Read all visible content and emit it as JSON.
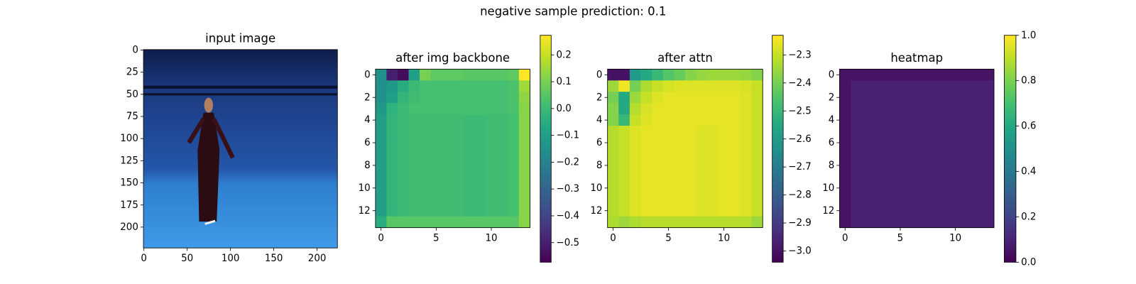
{
  "title": "negative sample     prediction: 0.1",
  "chart_data": [
    {
      "type": "image",
      "title": "input image",
      "xlim": [
        -0.5,
        223.5
      ],
      "ylim": [
        223.5,
        -0.5
      ],
      "xticks": [
        0,
        50,
        100,
        150,
        200
      ],
      "yticks": [
        0,
        25,
        50,
        75,
        100,
        125,
        150,
        175,
        200
      ]
    },
    {
      "type": "heatmap",
      "title": "after img backbone",
      "colormap": "viridis",
      "xlim": [
        -0.5,
        13.5
      ],
      "ylim": [
        13.5,
        -0.5
      ],
      "xticks": [
        0,
        5,
        10
      ],
      "yticks": [
        0,
        2,
        4,
        6,
        8,
        10,
        12
      ],
      "colorbar": {
        "ylim": [
          -0.573,
          0.273
        ],
        "yticks": [
          0.2,
          0.1,
          {
            "value": 0,
            "label": "0.0"
          },
          {
            "value": -0.1,
            "label": "−0.1"
          },
          {
            "value": -0.2,
            "label": "−0.2"
          },
          {
            "value": -0.3,
            "label": "−0.3"
          },
          {
            "value": -0.4,
            "label": "−0.4"
          },
          {
            "value": -0.5,
            "label": "−0.5"
          }
        ]
      },
      "z": [
        [
          -0.15,
          -0.5,
          -0.55,
          -0.1,
          0.1,
          0.06,
          0.06,
          0.06,
          0.05,
          0.05,
          0.05,
          0.05,
          0.06,
          0.27
        ],
        [
          -0.15,
          -0.12,
          -0.05,
          0,
          0.02,
          0.02,
          0.02,
          0.02,
          0.02,
          0.02,
          0.02,
          0.02,
          0.03,
          0.15
        ],
        [
          -0.15,
          -0.1,
          -0.02,
          0.01,
          0.02,
          0.02,
          0.02,
          0.02,
          0.02,
          0.02,
          0.02,
          0.02,
          0.03,
          0.13
        ],
        [
          -0.12,
          -0.03,
          0,
          0.02,
          0.02,
          0.02,
          0.02,
          0.02,
          0.02,
          0.02,
          0.02,
          0.02,
          0.03,
          0.12
        ],
        [
          -0.1,
          -0.02,
          0,
          0.01,
          0.01,
          0.01,
          0.01,
          0.01,
          0,
          0,
          0.01,
          0.01,
          0.02,
          0.12
        ],
        [
          -0.1,
          -0.02,
          0,
          0.01,
          0.01,
          0.01,
          0.01,
          0.01,
          0,
          0,
          0.01,
          0.01,
          0.02,
          0.12
        ],
        [
          -0.1,
          -0.02,
          0,
          0.01,
          0.01,
          0.01,
          0.01,
          0.01,
          0,
          0,
          0.01,
          0.01,
          0.02,
          0.12
        ],
        [
          -0.1,
          -0.02,
          0,
          0.01,
          0.01,
          0.01,
          0.01,
          0.01,
          0,
          0,
          0.01,
          0.01,
          0.02,
          0.12
        ],
        [
          -0.1,
          -0.02,
          0,
          0.01,
          0.01,
          0.01,
          0.01,
          0.01,
          0,
          0,
          0.01,
          0.01,
          0.02,
          0.12
        ],
        [
          -0.1,
          -0.02,
          0,
          0.01,
          0.01,
          0.01,
          0.01,
          0.01,
          0,
          0,
          0.01,
          0.01,
          0.02,
          0.12
        ],
        [
          -0.1,
          -0.02,
          0,
          0.01,
          0.01,
          0.01,
          0.01,
          0.01,
          0,
          0,
          0.01,
          0.01,
          0.02,
          0.12
        ],
        [
          -0.1,
          -0.02,
          0,
          0.01,
          0.01,
          0.01,
          0.01,
          0.01,
          0,
          0,
          0.01,
          0.01,
          0.02,
          0.12
        ],
        [
          -0.1,
          -0.02,
          0,
          0.01,
          0.01,
          0.01,
          0.01,
          0.01,
          0,
          0,
          0.01,
          0.01,
          0.02,
          0.12
        ],
        [
          -0.05,
          0.05,
          0.05,
          0.05,
          0.05,
          0.05,
          0.05,
          0.05,
          0.05,
          0.05,
          0.05,
          0.05,
          0.05,
          0.12
        ]
      ]
    },
    {
      "type": "heatmap",
      "title": "after attn",
      "colormap": "viridis",
      "xlim": [
        -0.5,
        13.5
      ],
      "ylim": [
        13.5,
        -0.5
      ],
      "xticks": [
        0,
        5,
        10
      ],
      "yticks": [
        0,
        2,
        4,
        6,
        8,
        10,
        12
      ],
      "colorbar": {
        "ylim": [
          -3.04,
          -2.23
        ],
        "yticks": [
          {
            "value": -2.3,
            "label": "−2.3"
          },
          {
            "value": -2.4,
            "label": "−2.4"
          },
          {
            "value": -2.5,
            "label": "−2.5"
          },
          {
            "value": -2.6,
            "label": "−2.6"
          },
          {
            "value": -2.7,
            "label": "−2.7"
          },
          {
            "value": -2.8,
            "label": "−2.8"
          },
          {
            "value": -2.9,
            "label": "−2.9"
          },
          {
            "value": -3,
            "label": "−3.0"
          }
        ]
      },
      "z": [
        [
          -3.0,
          -3.0,
          -2.6,
          -2.55,
          -2.5,
          -2.45,
          -2.42,
          -2.38,
          -2.36,
          -2.35,
          -2.35,
          -2.35,
          -2.36,
          -2.38
        ],
        [
          -2.35,
          -2.25,
          -2.4,
          -2.33,
          -2.3,
          -2.28,
          -2.27,
          -2.27,
          -2.27,
          -2.27,
          -2.27,
          -2.27,
          -2.28,
          -2.3
        ],
        [
          -2.4,
          -2.55,
          -2.35,
          -2.3,
          -2.27,
          -2.26,
          -2.26,
          -2.26,
          -2.26,
          -2.26,
          -2.26,
          -2.26,
          -2.27,
          -2.3
        ],
        [
          -2.38,
          -2.55,
          -2.32,
          -2.28,
          -2.26,
          -2.26,
          -2.26,
          -2.26,
          -2.26,
          -2.26,
          -2.26,
          -2.26,
          -2.27,
          -2.3
        ],
        [
          -2.38,
          -2.5,
          -2.3,
          -2.27,
          -2.26,
          -2.26,
          -2.26,
          -2.26,
          -2.26,
          -2.26,
          -2.26,
          -2.26,
          -2.27,
          -2.3
        ],
        [
          -2.32,
          -2.3,
          -2.27,
          -2.26,
          -2.26,
          -2.26,
          -2.26,
          -2.26,
          -2.27,
          -2.27,
          -2.26,
          -2.26,
          -2.27,
          -2.3
        ],
        [
          -2.32,
          -2.3,
          -2.27,
          -2.26,
          -2.26,
          -2.26,
          -2.26,
          -2.26,
          -2.27,
          -2.27,
          -2.26,
          -2.26,
          -2.27,
          -2.3
        ],
        [
          -2.32,
          -2.3,
          -2.27,
          -2.26,
          -2.26,
          -2.26,
          -2.26,
          -2.26,
          -2.27,
          -2.27,
          -2.26,
          -2.26,
          -2.27,
          -2.3
        ],
        [
          -2.32,
          -2.3,
          -2.27,
          -2.26,
          -2.26,
          -2.26,
          -2.26,
          -2.26,
          -2.27,
          -2.27,
          -2.26,
          -2.26,
          -2.27,
          -2.3
        ],
        [
          -2.32,
          -2.3,
          -2.27,
          -2.26,
          -2.26,
          -2.26,
          -2.26,
          -2.26,
          -2.27,
          -2.27,
          -2.26,
          -2.26,
          -2.27,
          -2.3
        ],
        [
          -2.32,
          -2.3,
          -2.27,
          -2.26,
          -2.26,
          -2.26,
          -2.26,
          -2.26,
          -2.27,
          -2.27,
          -2.26,
          -2.26,
          -2.27,
          -2.3
        ],
        [
          -2.32,
          -2.3,
          -2.27,
          -2.26,
          -2.26,
          -2.26,
          -2.26,
          -2.26,
          -2.27,
          -2.27,
          -2.26,
          -2.26,
          -2.27,
          -2.3
        ],
        [
          -2.32,
          -2.3,
          -2.27,
          -2.26,
          -2.26,
          -2.26,
          -2.26,
          -2.26,
          -2.27,
          -2.27,
          -2.26,
          -2.26,
          -2.27,
          -2.3
        ],
        [
          -2.33,
          -2.35,
          -2.33,
          -2.32,
          -2.32,
          -2.32,
          -2.32,
          -2.32,
          -2.32,
          -2.32,
          -2.32,
          -2.32,
          -2.32,
          -2.35
        ]
      ]
    },
    {
      "type": "heatmap",
      "title": "heatmap",
      "colormap": "viridis",
      "xlim": [
        -0.5,
        13.5
      ],
      "ylim": [
        13.5,
        -0.5
      ],
      "xticks": [
        0,
        5,
        10
      ],
      "yticks": [
        0,
        2,
        4,
        6,
        8,
        10,
        12
      ],
      "colorbar": {
        "ylim": [
          0,
          1
        ],
        "yticks": [
          {
            "value": 0,
            "label": "0.0"
          },
          0.2,
          0.4,
          0.6,
          0.8,
          {
            "value": 1,
            "label": "1.0"
          }
        ]
      },
      "z": [
        [
          0.05,
          0.05,
          0.05,
          0.05,
          0.05,
          0.05,
          0.05,
          0.05,
          0.05,
          0.05,
          0.05,
          0.05,
          0.05,
          0.05
        ],
        [
          0.05,
          0.09,
          0.09,
          0.09,
          0.09,
          0.09,
          0.09,
          0.09,
          0.09,
          0.09,
          0.09,
          0.09,
          0.09,
          0.09
        ],
        [
          0.05,
          0.09,
          0.09,
          0.09,
          0.09,
          0.09,
          0.09,
          0.09,
          0.09,
          0.09,
          0.09,
          0.09,
          0.09,
          0.09
        ],
        [
          0.05,
          0.09,
          0.09,
          0.09,
          0.09,
          0.09,
          0.09,
          0.09,
          0.09,
          0.09,
          0.09,
          0.09,
          0.09,
          0.09
        ],
        [
          0.05,
          0.09,
          0.09,
          0.09,
          0.09,
          0.09,
          0.09,
          0.09,
          0.09,
          0.09,
          0.09,
          0.09,
          0.09,
          0.09
        ],
        [
          0.05,
          0.09,
          0.09,
          0.09,
          0.09,
          0.09,
          0.09,
          0.09,
          0.09,
          0.09,
          0.09,
          0.09,
          0.09,
          0.09
        ],
        [
          0.05,
          0.09,
          0.09,
          0.09,
          0.09,
          0.09,
          0.09,
          0.09,
          0.09,
          0.09,
          0.09,
          0.09,
          0.09,
          0.09
        ],
        [
          0.05,
          0.09,
          0.09,
          0.09,
          0.09,
          0.09,
          0.09,
          0.09,
          0.09,
          0.09,
          0.09,
          0.09,
          0.09,
          0.09
        ],
        [
          0.05,
          0.09,
          0.09,
          0.09,
          0.09,
          0.09,
          0.09,
          0.09,
          0.09,
          0.09,
          0.09,
          0.09,
          0.09,
          0.09
        ],
        [
          0.05,
          0.09,
          0.09,
          0.09,
          0.09,
          0.09,
          0.09,
          0.09,
          0.09,
          0.09,
          0.09,
          0.09,
          0.09,
          0.09
        ],
        [
          0.05,
          0.09,
          0.09,
          0.09,
          0.09,
          0.09,
          0.09,
          0.09,
          0.09,
          0.09,
          0.09,
          0.09,
          0.09,
          0.09
        ],
        [
          0.05,
          0.09,
          0.09,
          0.09,
          0.09,
          0.09,
          0.09,
          0.09,
          0.09,
          0.09,
          0.09,
          0.09,
          0.09,
          0.09
        ],
        [
          0.05,
          0.09,
          0.09,
          0.09,
          0.09,
          0.09,
          0.09,
          0.09,
          0.09,
          0.09,
          0.09,
          0.09,
          0.09,
          0.09
        ],
        [
          0.05,
          0.09,
          0.09,
          0.09,
          0.09,
          0.09,
          0.09,
          0.09,
          0.09,
          0.09,
          0.09,
          0.09,
          0.09,
          0.09
        ]
      ]
    }
  ]
}
